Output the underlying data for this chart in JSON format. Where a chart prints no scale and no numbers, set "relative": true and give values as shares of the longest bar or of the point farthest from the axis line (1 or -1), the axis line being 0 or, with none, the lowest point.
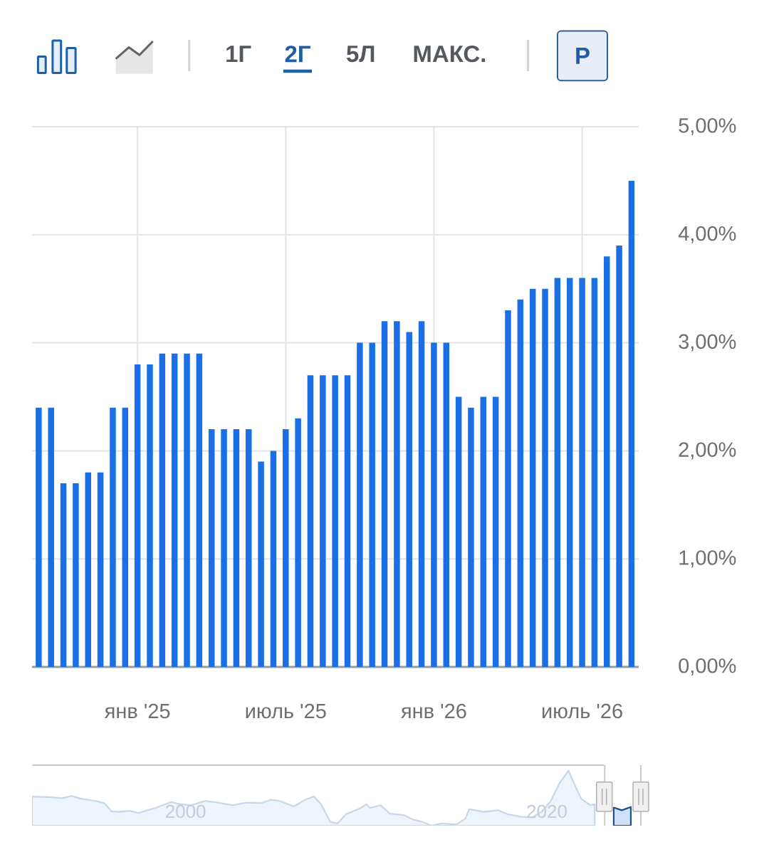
{
  "chart_data": [
    {
      "type": "bar",
      "categories": [
        null,
        null,
        null,
        null,
        null,
        null,
        null,
        null,
        "янв '25",
        null,
        null,
        null,
        null,
        null,
        null,
        null,
        null,
        null,
        null,
        null,
        "июль '25",
        null,
        null,
        null,
        null,
        null,
        null,
        null,
        null,
        null,
        null,
        null,
        "янв '26",
        null,
        null,
        null,
        null,
        null,
        null,
        null,
        null,
        null,
        null,
        null,
        "июль '26",
        null,
        null,
        null,
        null
      ],
      "values": [
        2.4,
        2.4,
        1.7,
        1.7,
        1.8,
        1.8,
        2.4,
        2.4,
        2.8,
        2.8,
        2.9,
        2.9,
        2.9,
        2.9,
        2.2,
        2.2,
        2.2,
        2.2,
        1.9,
        2.0,
        2.2,
        2.3,
        2.7,
        2.7,
        2.7,
        2.7,
        3.0,
        3.0,
        3.2,
        3.2,
        3.1,
        3.2,
        3.0,
        3.0,
        2.5,
        2.4,
        2.5,
        2.5,
        3.3,
        3.4,
        3.5,
        3.5,
        3.6,
        3.6,
        3.6,
        3.6,
        3.8,
        3.9,
        4.5
      ],
      "color": "#1b6fe6",
      "ylim": [
        0,
        5
      ],
      "yticks": [
        {
          "value": 0,
          "label": "0,00%"
        },
        {
          "value": 1,
          "label": "1,00%"
        },
        {
          "value": 2,
          "label": "2,00%"
        },
        {
          "value": 3,
          "label": "3,00%"
        },
        {
          "value": 4,
          "label": "4,00%"
        },
        {
          "value": 5,
          "label": "5,00%"
        }
      ],
      "grid": true,
      "annotations": [
        "1Г",
        "2Г",
        "5Л",
        "МАКС.",
        "Р"
      ]
    },
    {
      "type": "area",
      "relative": true,
      "xlim": [
        1991.5,
        2025.4
      ],
      "xticks": [
        2000,
        2020
      ],
      "series": [
        {
          "color": "#eef4fb",
          "x": [
            1991.5,
            1992.4,
            1993.2,
            1993.7,
            1994.2,
            1995.0,
            1995.5,
            1995.9,
            1996.3,
            1996.9,
            1997.4,
            1997.9,
            1998.4,
            1999.2,
            1999.7,
            2000.3,
            2001.1,
            2001.8,
            2002.6,
            2003.4,
            2004.2,
            2004.7,
            2005.2,
            2006.0,
            2006.6,
            2007.1,
            2007.5,
            2008.0,
            2008.4,
            2008.9,
            2009.7,
            2010.0,
            2010.2,
            2010.8,
            2011.3,
            2012.1,
            2012.6,
            2013.1,
            2013.6,
            2014.2,
            2015.0,
            2015.5,
            2015.7,
            2016.5,
            2017.3,
            2017.8,
            2018.6,
            2019.2,
            2019.7,
            2020.2,
            2020.7,
            2021.2,
            2021.5,
            2021.9,
            2022.4,
            2022.65
          ],
          "values": [
            0.53,
            0.52,
            0.5,
            0.54,
            0.49,
            0.45,
            0.41,
            0.26,
            0.25,
            0.27,
            0.23,
            0.28,
            0.33,
            0.43,
            0.39,
            0.37,
            0.45,
            0.42,
            0.37,
            0.42,
            0.41,
            0.47,
            0.45,
            0.35,
            0.47,
            0.53,
            0.39,
            0.07,
            0.04,
            0.21,
            0.32,
            0.39,
            0.32,
            0.37,
            0.22,
            0.19,
            0.11,
            0.07,
            0,
            0.04,
            0.02,
            0.13,
            0.3,
            0.25,
            0.28,
            0.21,
            0.16,
            0.15,
            0.25,
            0.44,
            0.77,
            1,
            0.77,
            0.49,
            0.37,
            0.39
          ]
        },
        {
          "color": "#cfe1f8",
          "x": [
            2023.7,
            2024.15,
            2024.65
          ],
          "values": [
            0.33,
            0.28,
            0.34
          ]
        }
      ],
      "ref_lines": [
        {
          "axis": "x",
          "value": 2023.2,
          "color": "#c8c8c8"
        },
        {
          "axis": "x",
          "value": 2025.2,
          "color": "#c8c8c8"
        }
      ]
    }
  ]
}
